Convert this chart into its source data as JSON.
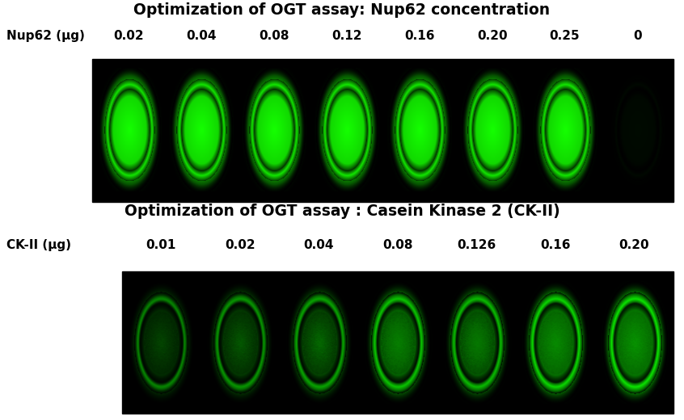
{
  "title1": "Optimization of OGT assay: Nup62 concentration",
  "title2": "Optimization of OGT assay : Casein Kinase 2 (CK-II)",
  "nup62_label": "Nup62 (μg)",
  "ckii_label": "CK-II (μg)",
  "nup62_values": [
    "0.02",
    "0.04",
    "0.08",
    "0.12",
    "0.16",
    "0.20",
    "0.25",
    "0"
  ],
  "ckii_values": [
    "0.01",
    "0.02",
    "0.04",
    "0.08",
    "0.126",
    "0.16",
    "0.20"
  ],
  "background_color": "#ffffff",
  "title_fontsize": 13.5,
  "label_fontsize": 11,
  "nup62_intensities": [
    1.0,
    1.0,
    1.0,
    1.0,
    1.0,
    1.0,
    1.0,
    0.12
  ],
  "ckii_intensities": [
    0.55,
    0.62,
    0.68,
    0.82,
    0.78,
    0.9,
    0.95
  ]
}
